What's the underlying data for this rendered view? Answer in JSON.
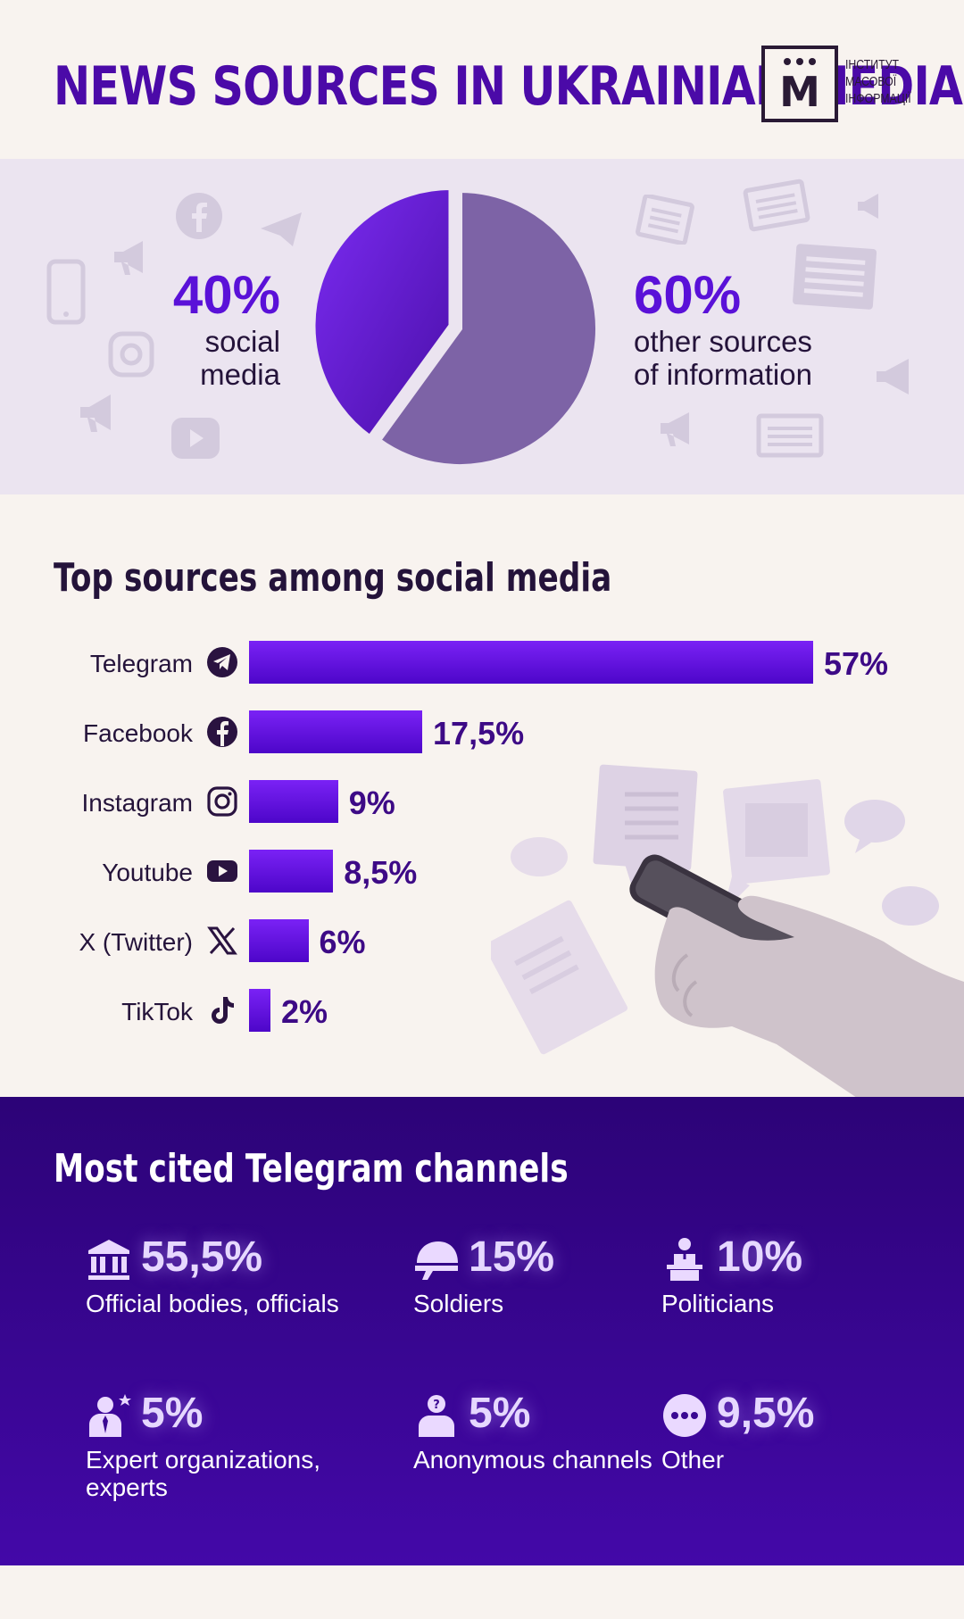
{
  "header": {
    "title": "NEWS SOURCES IN UKRAINIAN MEDIA",
    "logo_letter": "M",
    "logo_text": [
      "ІНСТИТУТ",
      "МАСОВОЇ",
      "ІНФОРМАЦІЇ"
    ]
  },
  "pie": {
    "left_pct": "40%",
    "left_label": [
      "social",
      "media"
    ],
    "right_pct": "60%",
    "right_label": [
      "other sources",
      "of information"
    ]
  },
  "bars_section": {
    "title": "Top sources among social media"
  },
  "telegram_section": {
    "title": "Most cited Telegram channels",
    "items": [
      {
        "value": "55,5%",
        "label": "Official bodies, officials",
        "icon": "building-icon"
      },
      {
        "value": "15%",
        "label": "Soldiers",
        "icon": "helmet-icon"
      },
      {
        "value": "10%",
        "label": "Politicians",
        "icon": "podium-icon"
      },
      {
        "value": "5%",
        "label": "Expert organizations, experts",
        "icon": "expert-icon"
      },
      {
        "value": "5%",
        "label": "Anonymous channels",
        "icon": "anonymous-icon"
      },
      {
        "value": "9,5%",
        "label": "Other",
        "icon": "dots-icon"
      }
    ]
  },
  "colors": {
    "accent": "#5a11d8",
    "pie_social": "#6d1ee8",
    "pie_other": "#7d63a6",
    "dark_band": "#34048a"
  },
  "chart_data": [
    {
      "type": "pie",
      "categories": [
        "social media",
        "other sources of information"
      ],
      "values": [
        40,
        60
      ]
    },
    {
      "type": "bar",
      "title": "Top sources among social media",
      "categories": [
        "Telegram",
        "Facebook",
        "Instagram",
        "Youtube",
        "X (Twitter)",
        "TikTok"
      ],
      "values": [
        57,
        17.5,
        9,
        8.5,
        6,
        2
      ],
      "value_labels": [
        "57%",
        "17,5%",
        "9%",
        "8,5%",
        "6%",
        "2%"
      ],
      "icons": [
        "telegram-icon",
        "facebook-icon",
        "instagram-icon",
        "youtube-icon",
        "x-icon",
        "tiktok-icon"
      ]
    },
    {
      "type": "table",
      "title": "Most cited Telegram channels",
      "categories": [
        "Official bodies, officials",
        "Soldiers",
        "Politicians",
        "Expert organizations, experts",
        "Anonymous channels",
        "Other"
      ],
      "values": [
        55.5,
        15,
        10,
        5,
        5,
        9.5
      ]
    }
  ]
}
